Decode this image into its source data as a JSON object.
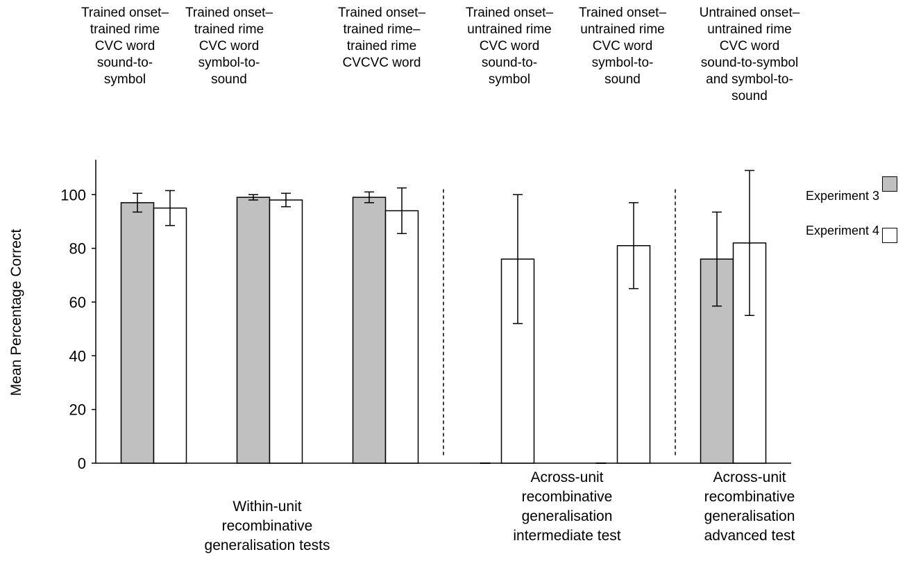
{
  "chart_data": {
    "type": "bar",
    "categories": [
      "Trained onset–\ntrained rime\nCVC word\nsound-to-\nsymbol",
      "Trained onset–\ntrained rime\nCVC word\nsymbol-to-\nsound",
      "Trained onset–\ntrained rime–\ntrained rime\nCVCVC word",
      "Trained onset–\nuntrained rime\nCVC word\nsound-to-\nsymbol",
      "Trained onset–\nuntrained rime\nCVC word\nsymbol-to-\nsound",
      "Untrained onset–\nuntrained rime\nCVC word\nsound-to-symbol\nand symbol-to-\nsound"
    ],
    "series": [
      {
        "name": "Experiment 3",
        "color": "#c0c0c0",
        "values": [
          97,
          99,
          99,
          0,
          0,
          76
        ],
        "error": [
          3.5,
          1,
          2,
          0,
          0,
          17.5
        ]
      },
      {
        "name": "Experiment 4",
        "color": "#ffffff",
        "values": [
          95,
          98,
          94,
          76,
          81,
          82
        ],
        "error": [
          6.5,
          2.5,
          8.5,
          24,
          16,
          27
        ]
      }
    ],
    "ylabel": "Mean Percentage Correct",
    "ylim": [
      0,
      113
    ],
    "yticks": [
      0,
      20,
      40,
      60,
      80,
      100
    ],
    "grid": false,
    "legend_position": "top-right",
    "group_labels": [
      {
        "text": "Within-unit\nrecombinative\ngeneralisation tests",
        "categories": [
          0,
          1,
          2
        ]
      },
      {
        "text": "Across-unit\nrecombinative\ngeneralisation\nintermediate test",
        "categories": [
          3,
          4
        ]
      },
      {
        "text": "Across-unit\nrecombinative\ngeneralisation\nadvanced test",
        "categories": [
          5
        ]
      }
    ],
    "separators_after_category": [
      2,
      4
    ]
  }
}
